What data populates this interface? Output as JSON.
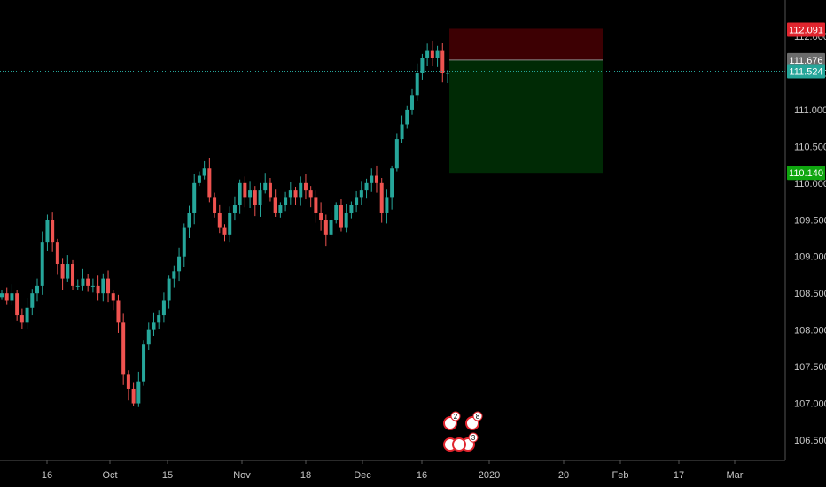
{
  "chart_data": {
    "type": "candlestick",
    "y_axis": {
      "ticks": [
        "106.500",
        "107.000",
        "107.500",
        "108.000",
        "108.500",
        "109.000",
        "109.500",
        "110.000",
        "110.500",
        "111.000",
        "111.500",
        "112.000"
      ],
      "range": [
        106.2,
        112.3
      ]
    },
    "x_axis": {
      "ticks": [
        "16",
        "Oct",
        "15",
        "Nov",
        "18",
        "Dec",
        "16",
        "2020",
        "20",
        "Feb",
        "17",
        "Mar"
      ]
    },
    "price_tags": {
      "stop": {
        "label": "112.091",
        "value": 112.091,
        "color": "#e0252e"
      },
      "entry": {
        "label": "111.676",
        "value": 111.676,
        "color": "#6b6b6b"
      },
      "current": {
        "label": "111.524",
        "value": 111.524,
        "color": "#26a69a"
      },
      "target": {
        "label": "110.140",
        "value": 110.14,
        "color": "#0fa60f"
      }
    },
    "position_box": {
      "side": "short",
      "entry": 111.676,
      "stop": 112.091,
      "target": 110.14,
      "risk_color": "#3d0003",
      "reward_color": "#002a05"
    },
    "series_closes": [
      108.5,
      108.4,
      108.5,
      108.2,
      108.1,
      108.3,
      108.5,
      108.6,
      109.2,
      109.5,
      109.2,
      108.9,
      108.7,
      108.9,
      108.6,
      108.6,
      108.7,
      108.6,
      108.6,
      108.5,
      108.7,
      108.5,
      108.4,
      108.1,
      107.4,
      107.2,
      107.0,
      107.3,
      107.8,
      108.0,
      108.1,
      108.2,
      108.4,
      108.7,
      108.8,
      109.0,
      109.4,
      109.6,
      110.0,
      110.1,
      110.2,
      109.8,
      109.6,
      109.4,
      109.3,
      109.6,
      109.7,
      110.0,
      109.8,
      109.9,
      109.7,
      109.9,
      110.0,
      109.8,
      109.6,
      109.7,
      109.8,
      109.9,
      109.8,
      110.0,
      109.9,
      109.8,
      109.6,
      109.5,
      109.3,
      109.5,
      109.7,
      109.4,
      109.6,
      109.7,
      109.8,
      109.9,
      110.0,
      110.1,
      110.0,
      109.6,
      109.8,
      110.2,
      110.6,
      110.8,
      111.0,
      111.2,
      111.5,
      111.7,
      111.8,
      111.7,
      111.8,
      111.5,
      111.5
    ],
    "colors": {
      "up": "#26a69a",
      "down": "#ef5350",
      "background": "#000000",
      "axis_text": "#c8c8c8",
      "hline": "#26a69a"
    }
  },
  "markers": [
    {
      "badge": "2"
    },
    {
      "badge": "8"
    },
    {
      "badge": "3"
    }
  ]
}
